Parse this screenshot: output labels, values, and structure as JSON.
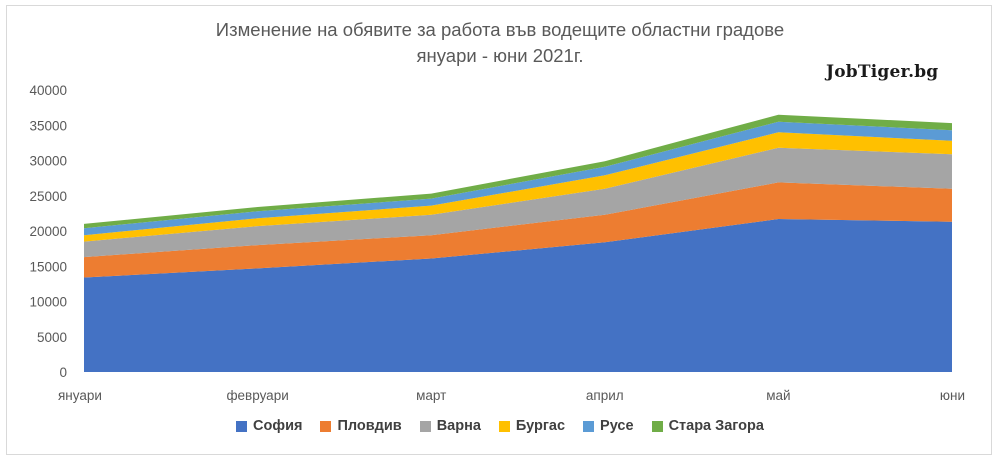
{
  "title": {
    "line1": "Изменение на обявите за работа във водещите областни градове",
    "line2": "януари - юни 2021г."
  },
  "watermark": "JobTiger.bg",
  "chart_data": {
    "type": "area",
    "stacked": true,
    "categories": [
      "януари",
      "февруари",
      "март",
      "април",
      "май",
      "юни"
    ],
    "ylim": [
      0,
      40000
    ],
    "yticks": [
      0,
      5000,
      10000,
      15000,
      20000,
      25000,
      30000,
      35000,
      40000
    ],
    "grid": false,
    "legend": "bottom",
    "series": [
      {
        "name": "София",
        "color": "#4472c4",
        "values": [
          13400,
          14700,
          16100,
          18400,
          21700,
          21300
        ]
      },
      {
        "name": "Пловдив",
        "color": "#ed7d31",
        "values": [
          2900,
          3300,
          3300,
          3900,
          5200,
          4700
        ]
      },
      {
        "name": "Варна",
        "color": "#a5a5a5",
        "values": [
          2200,
          2700,
          2900,
          3700,
          4900,
          4900
        ]
      },
      {
        "name": "Бургас",
        "color": "#ffc000",
        "values": [
          900,
          1100,
          1300,
          1900,
          2200,
          1900
        ]
      },
      {
        "name": "Русе",
        "color": "#5b9bd5",
        "values": [
          1000,
          1000,
          1000,
          1200,
          1500,
          1500
        ]
      },
      {
        "name": "Стара Загора",
        "color": "#70ad47",
        "values": [
          600,
          600,
          700,
          800,
          1000,
          1000
        ]
      }
    ]
  }
}
